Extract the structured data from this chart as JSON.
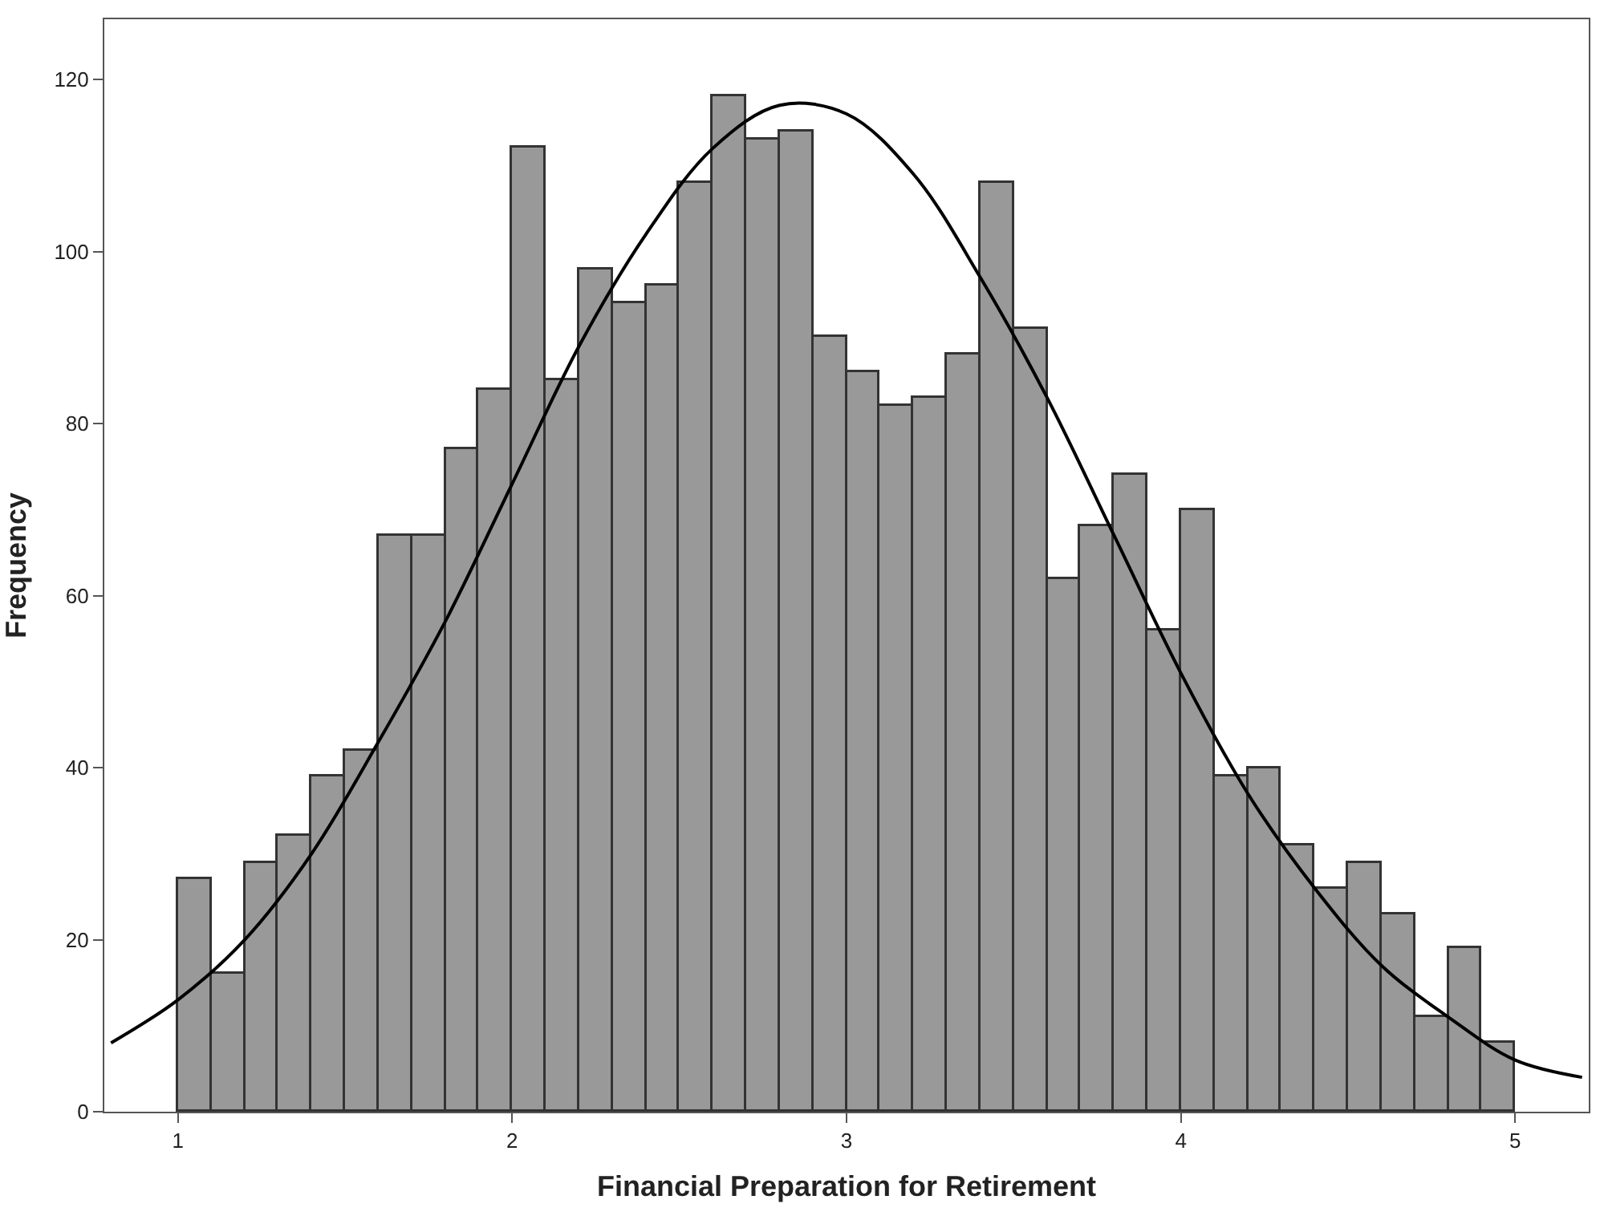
{
  "chart_data": {
    "type": "histogram",
    "xlabel": "Financial Preparation for Retirement",
    "ylabel": "Frequency",
    "bins": [
      1.0,
      1.1,
      1.2,
      1.3,
      1.4,
      1.5,
      1.6,
      1.7,
      1.8,
      1.9,
      2.0,
      2.1,
      2.2,
      2.3,
      2.4,
      2.5,
      2.6,
      2.7,
      2.8,
      2.9,
      3.0,
      3.1,
      3.2,
      3.3,
      3.4,
      3.5,
      3.6,
      3.7,
      3.8,
      3.9,
      4.0,
      4.1,
      4.2,
      4.3,
      4.4,
      4.5,
      4.6,
      4.7,
      4.8,
      4.9,
      5.0
    ],
    "values": [
      27,
      16,
      29,
      32,
      39,
      42,
      67,
      67,
      77,
      84,
      112,
      85,
      98,
      94,
      96,
      108,
      118,
      113,
      114,
      90,
      86,
      82,
      83,
      88,
      108,
      91,
      62,
      68,
      74,
      56,
      70,
      39,
      40,
      31,
      26,
      29,
      23,
      11,
      19,
      8
    ],
    "color": "#999999",
    "series": [
      {
        "type": "line",
        "color": "#000000",
        "x": [
          0.8,
          1.0,
          1.2,
          1.4,
          1.6,
          1.8,
          2.0,
          2.2,
          2.4,
          2.6,
          2.8,
          3.0,
          3.2,
          3.4,
          3.6,
          3.8,
          4.0,
          4.2,
          4.4,
          4.6,
          4.8,
          5.0,
          5.2
        ],
        "values": [
          8,
          13,
          20,
          30,
          43,
          57,
          73,
          89,
          102,
          112,
          117,
          116,
          109,
          97,
          83,
          67,
          51,
          37,
          26,
          17,
          11,
          6,
          4
        ]
      }
    ],
    "xlim": [
      0.78,
      5.22
    ],
    "xticks": [
      1,
      2,
      3,
      4,
      5
    ],
    "ylim": [
      0,
      127
    ],
    "yticks": [
      0,
      20,
      40,
      60,
      80,
      100,
      120
    ]
  }
}
